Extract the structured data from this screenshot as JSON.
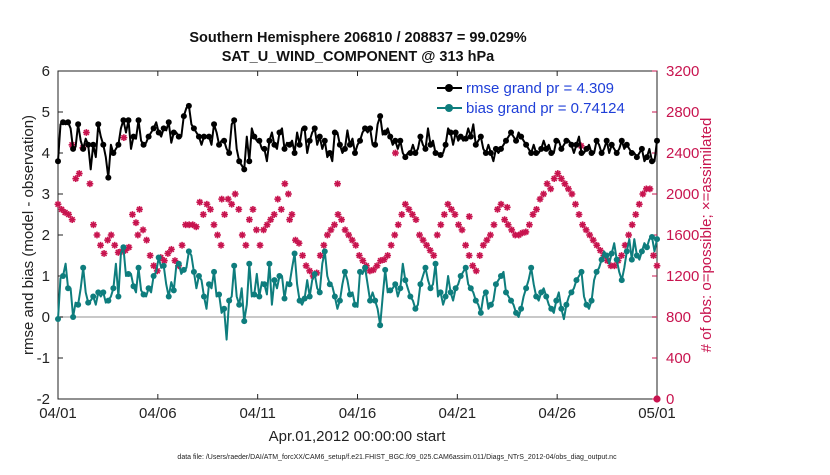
{
  "chart_data": {
    "type": "line",
    "title_line1": "Southern Hemisphere 206810 / 208837 = 99.029%",
    "title_line2": "SAT_U_WIND_COMPONENT @ 313 hPa",
    "xlabel": "Apr.01,2012 00:00:00 start",
    "ylabel": "rmse and bias (model - observation)",
    "ylabel_right": "# of obs: o=possible; ×=assimilated",
    "footnote": "data file: /Users/raeder/DAI/ATM_forcXX/CAM6_setup/f.e21.FHIST_BGC.f09_025.CAM6assim.011/Diags_NTrS_2012-04/obs_diag_output.nc",
    "xlim": [
      0,
      30
    ],
    "ylim": [
      -2,
      6
    ],
    "ylim_right": [
      0,
      3200
    ],
    "xticks": [
      0,
      5,
      10,
      15,
      20,
      25,
      30
    ],
    "xtick_labels": [
      "04/01",
      "04/06",
      "04/11",
      "04/16",
      "04/21",
      "04/26",
      "05/01"
    ],
    "yticks": [
      -2,
      -1,
      0,
      1,
      2,
      3,
      4,
      5,
      6
    ],
    "ytick_labels": [
      "-2",
      "-1",
      "0",
      "1",
      "2",
      "3",
      "4",
      "5",
      "6"
    ],
    "yticks_right": [
      0,
      400,
      800,
      1200,
      1600,
      2000,
      2400,
      2800,
      3200
    ],
    "ytick_labels_right": [
      "0",
      "400",
      "800",
      "1200",
      "1600",
      "2000",
      "2400",
      "2800",
      "3200"
    ],
    "colors": {
      "rmse": "#000000",
      "bias": "#0E7D7D",
      "obs": "#C8144F",
      "zero": "#b5b5b5",
      "legend_text": "#1f3fd8"
    },
    "series": [
      {
        "name": "rmse grand pr = 4.309",
        "values": [
          3.8,
          4.7,
          4.75,
          4.7,
          4.75,
          4.6,
          4.1,
          4.15,
          4.7,
          4.3,
          4.1,
          4.35,
          4.2,
          3.6,
          4.2,
          3.9,
          4.7,
          4.4,
          4.2,
          3.9,
          3.4,
          4.2,
          4.0,
          4.1,
          4.2,
          4.6,
          4.8,
          4.5,
          4.8,
          4.1,
          4.4,
          4.35,
          4.8,
          4.3,
          4.2,
          4.25,
          4.4,
          4.5,
          4.6,
          4.75,
          4.5,
          4.4,
          4.6,
          4.55,
          4.75,
          4.25,
          4.5,
          4.5,
          4.4,
          4.4,
          4.9,
          5.1,
          5.15,
          4.7,
          4.6,
          4.5,
          4.4,
          4.2,
          4.4,
          4.4,
          4.4,
          4.2,
          4.7,
          4.5,
          4.2,
          4.3,
          4.3,
          4.1,
          4.0,
          4.7,
          4.8,
          4.1,
          3.8,
          3.7,
          3.6,
          4.4,
          3.8,
          4.6,
          4.4,
          4.3,
          4.3,
          4.1,
          4.1,
          3.8,
          4.3,
          4.5,
          4.2,
          4.1,
          4.5,
          4.6,
          4.1,
          4.25,
          4.2,
          4.3,
          4.0,
          4.5,
          4.2,
          4.6,
          4.6,
          4.0,
          4.3,
          4.5,
          4.6,
          4.2,
          4.4,
          4.1,
          4.3,
          3.9,
          4.0,
          3.8,
          4.5,
          4.5,
          4.2,
          4.0,
          4.1,
          4.55,
          4.2,
          4.35,
          4.0,
          4.2,
          4.3,
          4.5,
          4.6,
          4.5,
          4.6,
          4.2,
          4.2,
          4.7,
          4.9,
          4.45,
          4.5,
          4.6,
          4.4,
          4.2,
          4.3,
          4.1,
          4.3,
          4.0,
          3.9,
          4.0,
          4.0,
          4.2,
          4.0,
          4.1,
          4.4,
          4.2,
          4.1,
          4.6,
          4.2,
          4.3,
          4.0,
          4.0,
          3.95,
          4.0,
          4.2,
          4.6,
          4.5,
          4.2,
          4.5,
          4.3,
          4.4,
          4.3,
          4.35,
          4.6,
          4.4,
          4.7,
          4.2,
          4.3,
          4.4,
          4.1,
          4.0,
          4.2,
          4.0,
          3.8,
          4.1,
          4.0,
          4.1,
          4.2,
          4.3,
          4.4,
          4.5,
          4.4,
          4.3,
          4.5,
          4.4,
          4.3,
          4.2,
          4.1,
          4.0,
          4.2,
          4.0,
          4.0,
          4.1,
          4.3,
          4.1,
          4.2,
          4.0,
          4.0,
          4.3,
          4.3,
          4.1,
          4.2,
          4.3,
          4.3,
          4.2,
          4.0,
          4.2,
          4.4,
          4.0,
          4.0,
          4.1,
          4.2,
          4.0,
          4.0,
          4.3,
          4.2,
          4.0,
          4.1,
          4.3,
          4.0,
          4.2,
          4.1,
          4.0,
          4.1,
          4.3,
          4.1,
          4.2,
          4.1,
          4.0,
          4.0,
          3.9,
          4.0,
          4.1,
          3.8,
          3.9,
          4.1,
          3.8,
          3.8,
          4.3
        ]
      },
      {
        "name": "bias grand pr = 0.74124",
        "values": [
          -0.05,
          0.95,
          1.0,
          1.3,
          0.7,
          0.7,
          0.0,
          0.35,
          0.3,
          0.7,
          1.2,
          0.6,
          0.35,
          0.4,
          0.5,
          0.3,
          0.6,
          0.5,
          0.6,
          0.35,
          0.4,
          0.5,
          0.7,
          1.3,
          0.5,
          1.55,
          1.7,
          1.0,
          1.05,
          1.05,
          0.75,
          0.6,
          1.2,
          0.65,
          0.55,
          0.5,
          0.7,
          0.6,
          1.0,
          1.1,
          1.45,
          1.2,
          1.25,
          0.8,
          0.5,
          0.85,
          0.65,
          1.25,
          1.3,
          1.05,
          1.15,
          1.2,
          1.6,
          1.5,
          1.1,
          0.7,
          1.0,
          0.9,
          0.5,
          0.2,
          0.8,
          0.7,
          1.1,
          0.5,
          0.55,
          0.1,
          0.2,
          -0.55,
          0.4,
          0.5,
          1.25,
          0.5,
          0.3,
          0.7,
          -0.1,
          0.3,
          1.3,
          0.5,
          0.55,
          1.05,
          0.5,
          0.85,
          0.8,
          0.55,
          1.3,
          0.3,
          0.9,
          0.7,
          1.0,
          1.0,
          0.45,
          0.85,
          0.8,
          1.2,
          1.55,
          0.8,
          0.4,
          0.3,
          0.45,
          0.9,
          0.5,
          0.9,
          1.05,
          0.7,
          0.6,
          1.3,
          1.6,
          1.0,
          0.8,
          0.75,
          0.5,
          0.2,
          0.4,
          0.8,
          1.1,
          0.9,
          0.55,
          0.6,
          0.3,
          0.25,
          1.1,
          1.05,
          1.2,
          0.8,
          0.4,
          0.6,
          0.4,
          0.2,
          -0.2,
          0.5,
          1.15,
          0.6,
          0.65,
          0.7,
          0.8,
          0.5,
          0.7,
          1.3,
          0.9,
          0.7,
          0.5,
          0.4,
          0.2,
          0.3,
          0.8,
          1.0,
          1.2,
          0.9,
          0.7,
          0.8,
          1.3,
          0.5,
          0.6,
          0.3,
          0.5,
          1.0,
          0.6,
          0.4,
          0.7,
          0.8,
          1.0,
          1.1,
          1.2,
          0.8,
          0.7,
          0.6,
          0.4,
          0.3,
          0.1,
          0.5,
          0.6,
          0.2,
          0.3,
          0.4,
          0.8,
          0.9,
          1.0,
          1.1,
          0.6,
          0.5,
          0.4,
          0.3,
          0.1,
          0.0,
          0.2,
          0.5,
          0.7,
          0.9,
          1.2,
          0.8,
          0.5,
          0.4,
          0.6,
          0.7,
          0.5,
          0.3,
          0.2,
          0.1,
          0.4,
          0.6,
          0.2,
          -0.05,
          0.3,
          0.5,
          0.6,
          0.7,
          0.9,
          1.0,
          1.1,
          0.5,
          0.3,
          0.2,
          0.4,
          0.9,
          1.1,
          1.2,
          1.4,
          1.6,
          1.5,
          1.3,
          1.55,
          1.8,
          1.4,
          1.1,
          0.9,
          1.2,
          1.6,
          1.9,
          1.4,
          1.9,
          1.5,
          1.4,
          1.6,
          1.8,
          1.7,
          1.9,
          1.95,
          1.6,
          1.9
        ]
      },
      {
        "name": "obs_assimilated",
        "values": [
          1900,
          1850,
          1820,
          1800,
          1750,
          2150,
          2200,
          2450,
          2600,
          2100,
          1700,
          1600,
          1500,
          1420,
          1550,
          1600,
          1500,
          1430,
          1440,
          1450,
          1480,
          1800,
          1720,
          1850,
          1650,
          1550,
          1400,
          1300,
          1250,
          1380,
          1350,
          1420,
          1460,
          1350,
          1300,
          1500,
          1700,
          1700,
          1700,
          1680,
          1920,
          1800,
          1900,
          1850,
          1700,
          1600,
          1500,
          1800,
          1950,
          1900,
          2000,
          1850,
          1600,
          1500,
          1750,
          1850,
          1650,
          1500,
          1650,
          1700,
          1750,
          1800,
          1950,
          1850,
          2100,
          2000,
          1800,
          1550,
          1520,
          1400,
          1300,
          1250,
          1200,
          1230,
          1400,
          1500,
          1600,
          1650,
          1700,
          1800,
          1750,
          1650,
          1600,
          1550,
          1500,
          1400,
          1350,
          1300,
          1250,
          1260,
          1300,
          1350,
          1360,
          1400,
          1500,
          1600,
          1700,
          1800,
          1900,
          1850,
          1800,
          1750,
          1600,
          1550,
          1500,
          1450,
          1400,
          1600,
          1700,
          1800,
          1900,
          1850,
          1800,
          1700,
          1650,
          1500,
          1400,
          1300,
          1250,
          1400,
          1500,
          1550,
          1600,
          1700,
          1850,
          1900,
          1750,
          1700,
          1650,
          1600,
          1600,
          1620,
          1630,
          1700,
          1800,
          1850,
          1950,
          2000,
          2100,
          2050,
          2150,
          2200,
          2150,
          2100,
          2050,
          2000,
          1900,
          1800,
          1700,
          1650,
          1600,
          1550,
          1500,
          1450,
          1400,
          1350,
          1300,
          1300,
          1350,
          1400,
          1500,
          1600,
          1700,
          1800,
          1900,
          2000,
          2050,
          2050,
          1400,
          1300
        ]
      }
    ],
    "extra_obs_points": [
      2480,
      2550,
      2400,
      2470,
      2100,
      1950,
      1750,
      1780,
      1870,
      1600
    ],
    "legend_location": "top-right"
  }
}
